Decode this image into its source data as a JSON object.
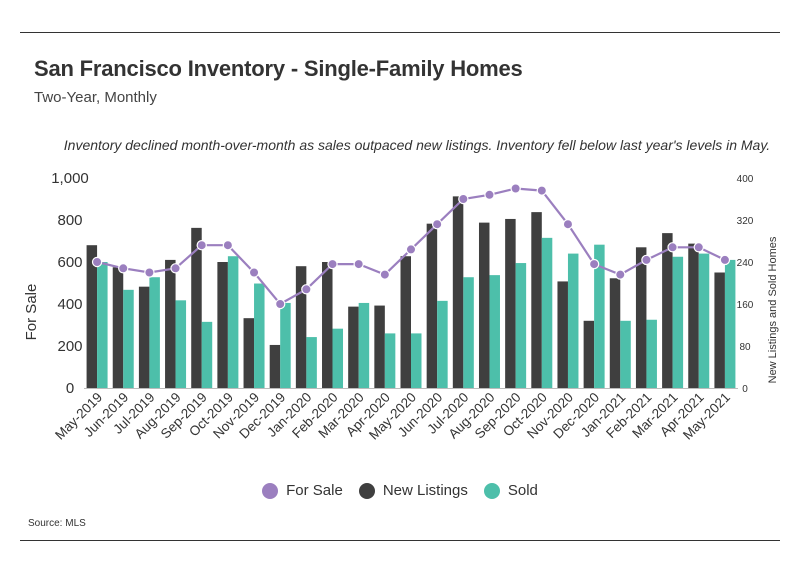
{
  "header": {
    "title": "San Francisco Inventory - Single-Family Homes",
    "subtitle": "Two-Year, Monthly",
    "note": "Inventory declined month-over-month as sales outpaced new listings. Inventory fell below last year's levels in May."
  },
  "footer": {
    "source": "Source:  MLS"
  },
  "legend": [
    {
      "label": "For Sale",
      "color": "#9b7fbf"
    },
    {
      "label": "New Listings",
      "color": "#3f3f3f"
    },
    {
      "label": "Sold",
      "color": "#4dbfaa"
    }
  ],
  "chart_data": {
    "type": "bar+line",
    "categories": [
      "May-2019",
      "Jun-2019",
      "Jul-2019",
      "Aug-2019",
      "Sep-2019",
      "Oct-2019",
      "Nov-2019",
      "Dec-2019",
      "Jan-2020",
      "Feb-2020",
      "Mar-2020",
      "Apr-2020",
      "May-2020",
      "Jun-2020",
      "Jul-2020",
      "Aug-2020",
      "Sep-2020",
      "Oct-2020",
      "Nov-2020",
      "Dec-2020",
      "Jan-2021",
      "Feb-2021",
      "Mar-2021",
      "Apr-2021",
      "May-2021"
    ],
    "left_axis": {
      "label": "For Sale",
      "range": [
        0,
        1000
      ],
      "ticks": [
        "0",
        "200",
        "400",
        "600",
        "800",
        "1,000"
      ]
    },
    "right_axis": {
      "label": "New Listings and Sold Homes",
      "range": [
        0,
        400
      ],
      "ticks": [
        "0",
        "80",
        "160",
        "240",
        "320",
        "400"
      ]
    },
    "series": [
      {
        "name": "For Sale",
        "type": "line",
        "axis": "left",
        "color": "#9b7fbf",
        "values": [
          600,
          570,
          550,
          570,
          680,
          680,
          550,
          400,
          470,
          590,
          590,
          540,
          660,
          780,
          900,
          920,
          950,
          940,
          780,
          590,
          540,
          610,
          670,
          670,
          610
        ]
      },
      {
        "name": "New Listings",
        "type": "bar",
        "axis": "right",
        "color": "#3f3f3f",
        "values": [
          272,
          230,
          193,
          244,
          305,
          240,
          133,
          82,
          232,
          240,
          155,
          157,
          251,
          313,
          365,
          315,
          322,
          335,
          203,
          128,
          209,
          268,
          295,
          275,
          220
        ]
      },
      {
        "name": "Sold",
        "type": "bar",
        "axis": "right",
        "color": "#4dbfaa",
        "values": [
          240,
          187,
          211,
          167,
          126,
          251,
          199,
          162,
          97,
          113,
          162,
          104,
          104,
          166,
          211,
          215,
          238,
          286,
          256,
          273,
          128,
          130,
          250,
          256,
          244
        ]
      }
    ],
    "grid": false,
    "legend_position": "bottom"
  }
}
